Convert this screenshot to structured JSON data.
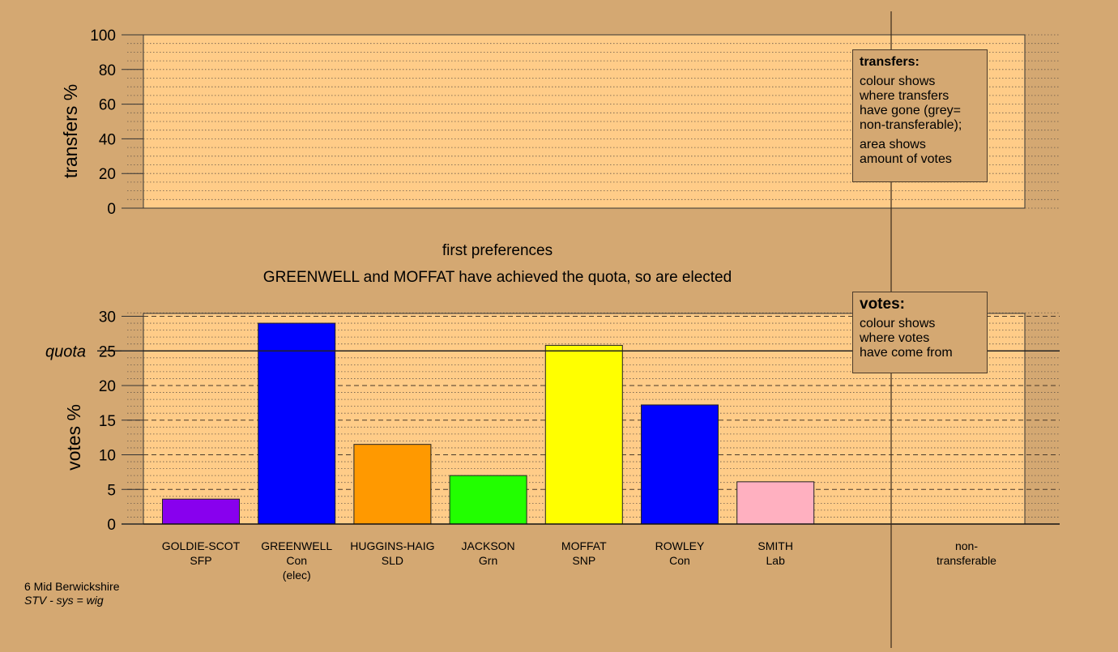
{
  "top_panel": {
    "ylabel": "transfers %",
    "ticks": [
      0,
      20,
      40,
      60,
      80,
      100
    ]
  },
  "headings": {
    "stage": "first preferences",
    "status": "GREENWELL and MOFFAT have achieved the quota, so are elected"
  },
  "legend_transfers": {
    "title": "transfers:",
    "line1": "colour shows",
    "line2": "where transfers",
    "line3": "have gone (grey=",
    "line4": "non-transferable);",
    "line5": "area shows",
    "line6": "amount of votes"
  },
  "legend_votes": {
    "title": "votes:",
    "line1": "colour shows",
    "line2": "where votes",
    "line3": "have come from"
  },
  "footer": {
    "ward": "6 Mid Berwickshire",
    "system": "STV - sys = wig"
  },
  "colors": {
    "background": "#d4a872",
    "plot_area": "#ffcc88"
  },
  "chart_data": {
    "type": "bar",
    "ylabel": "votes %",
    "ylim": [
      0,
      30
    ],
    "yticks": [
      0,
      5,
      10,
      15,
      20,
      25,
      30
    ],
    "quota": 25,
    "quota_label": "quota",
    "grid": true,
    "categories": [
      "GOLDIE-SCOT",
      "GREENWELL",
      "HUGGINS-HAIG",
      "JACKSON",
      "MOFFAT",
      "ROWLEY",
      "SMITH"
    ],
    "parties": [
      "SFP",
      "Con",
      "SLD",
      "Grn",
      "SNP",
      "Con",
      "Lab"
    ],
    "notes": [
      "",
      "(elec)",
      "",
      "",
      "",
      "",
      ""
    ],
    "values": [
      3.6,
      29.0,
      11.5,
      7.0,
      25.8,
      17.2,
      6.1
    ],
    "bar_colors": [
      "#8800ee",
      "#0000ff",
      "#ff9900",
      "#22ff00",
      "#ffff00",
      "#0000ff",
      "#ffb0c0"
    ],
    "nontransferable_label": "non-\ntransferable"
  }
}
